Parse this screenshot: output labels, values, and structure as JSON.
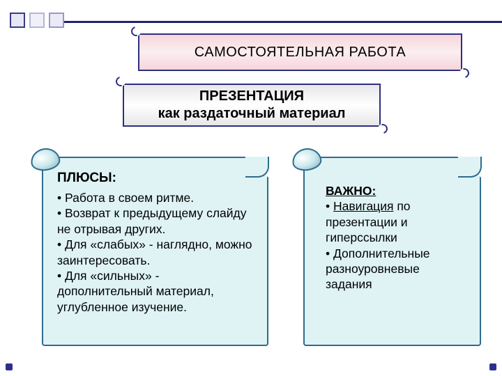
{
  "colors": {
    "border_primary": "#2e2e80",
    "banner_gradient_top": "#f6d5dc",
    "banner_gradient_mid": "#fbeef0",
    "sub_gradient": "#e7e7e9",
    "scroll_bg": "#dff3f5",
    "scroll_border": "#2d6b8e",
    "square_border": "#3a3a8a"
  },
  "banner": {
    "text": "САМОСТОЯТЕЛЬНАЯ  РАБОТА"
  },
  "sub_banner": {
    "line1": "ПРЕЗЕНТАЦИЯ",
    "line2": "как раздаточный материал"
  },
  "left_panel": {
    "heading": "ПЛЮСЫ:",
    "items": [
      "•  Работа в своем ритме.",
      "•  Возврат к предыдущему слайду не отрывая других.",
      "•  Для «слабых» - наглядно, можно заинтересовать.",
      "•  Для «сильных» - дополнительный материал, углубленное изучение."
    ]
  },
  "right_panel": {
    "heading": "ВАЖНО:",
    "nav_label": "Навигация",
    "line1_rest": " по презентации и гиперссылки",
    "line2": "• Дополнительные разноуровневые задания"
  }
}
